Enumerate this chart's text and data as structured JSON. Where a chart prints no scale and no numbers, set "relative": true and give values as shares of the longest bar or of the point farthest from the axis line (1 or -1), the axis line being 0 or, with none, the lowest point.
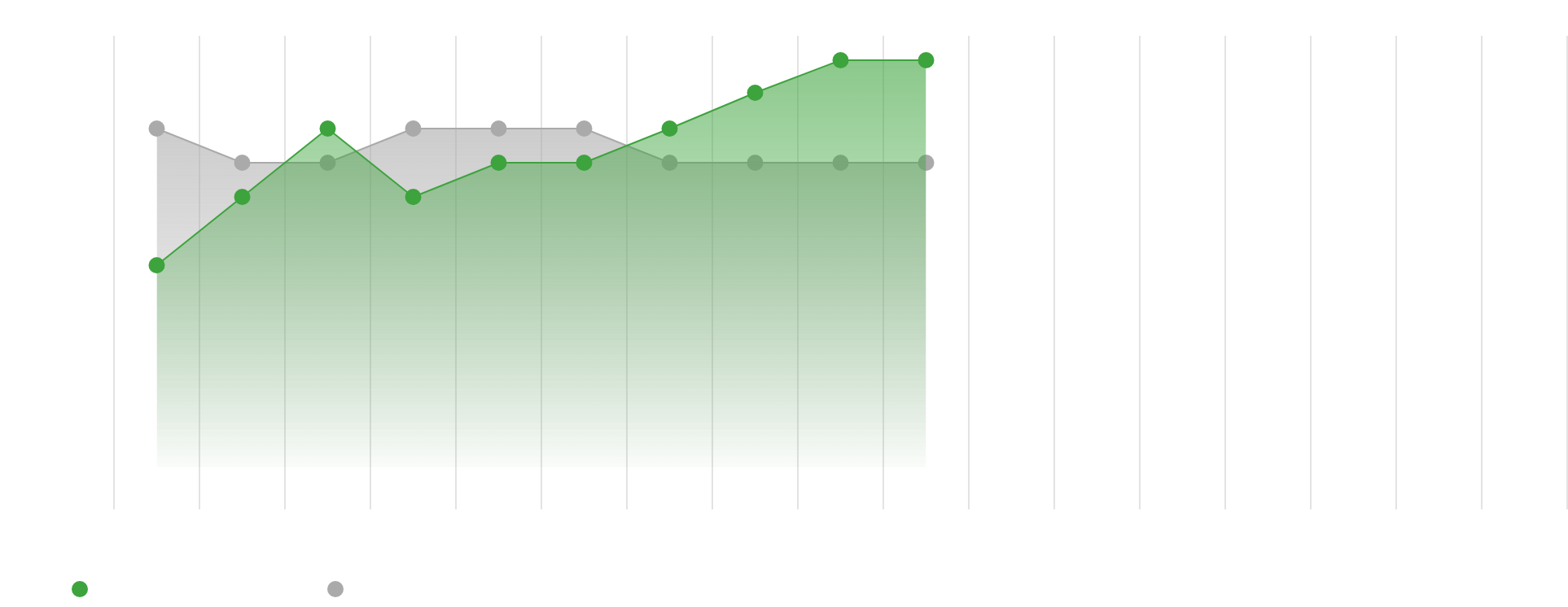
{
  "chart_data": {
    "type": "area",
    "relative": true,
    "grid": "x",
    "marker": "circle",
    "categories": [
      null,
      null,
      null,
      null,
      null,
      null,
      null,
      null,
      null,
      null,
      null,
      null,
      null,
      null,
      null,
      null,
      null
    ],
    "series": [
      {
        "color": "#aaaaaa",
        "values": [
          0.832,
          0.748,
          0.748,
          0.832,
          0.832,
          0.832,
          0.748,
          0.748,
          0.748,
          0.748,
          null,
          null,
          null,
          null,
          null,
          null,
          null
        ]
      },
      {
        "color": "#3da33d",
        "values": [
          0.496,
          0.664,
          0.832,
          0.664,
          0.748,
          0.748,
          0.832,
          0.92,
          1,
          1,
          null,
          null,
          null,
          null,
          null,
          null,
          null
        ]
      }
    ]
  }
}
